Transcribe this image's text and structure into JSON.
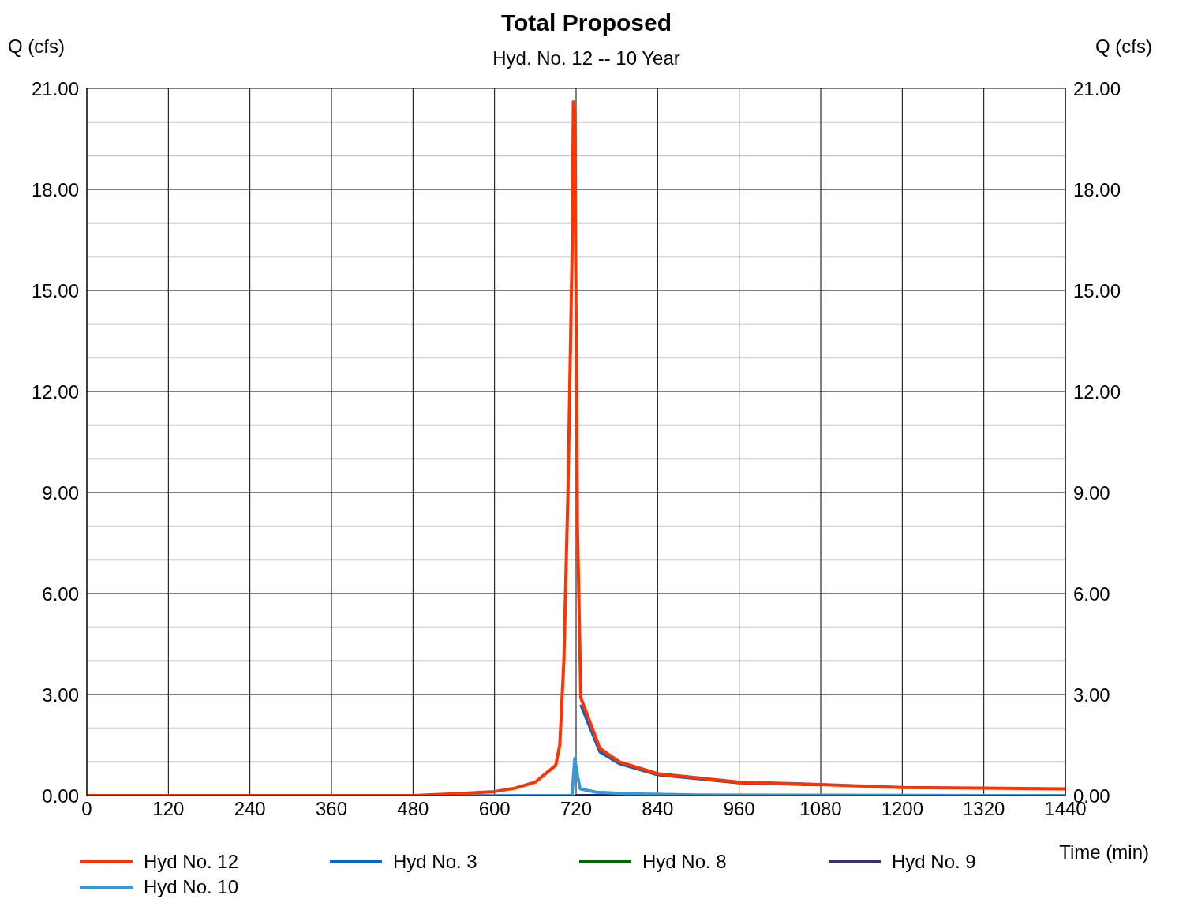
{
  "chart_data": {
    "type": "line",
    "title": "Total Proposed",
    "subtitle": "Hyd. No. 12 -- 10 Year",
    "xlabel": "Time (min)",
    "ylabel": "Q (cfs)",
    "y2label": "Q (cfs)",
    "xlim": [
      0,
      1440
    ],
    "xticks": [
      0,
      120,
      240,
      360,
      480,
      600,
      720,
      840,
      960,
      1080,
      1200,
      1320,
      1440
    ],
    "ylim": [
      0,
      21
    ],
    "yticks": [
      {
        "value": 0,
        "label": "0.00"
      },
      {
        "value": 1,
        "label": null
      },
      {
        "value": 2,
        "label": null
      },
      {
        "value": 3,
        "label": "3.00"
      },
      {
        "value": 4,
        "label": null
      },
      {
        "value": 5,
        "label": null
      },
      {
        "value": 6,
        "label": "6.00"
      },
      {
        "value": 7,
        "label": null
      },
      {
        "value": 8,
        "label": null
      },
      {
        "value": 9,
        "label": "9.00"
      },
      {
        "value": 10,
        "label": null
      },
      {
        "value": 11,
        "label": null
      },
      {
        "value": 12,
        "label": "12.00"
      },
      {
        "value": 13,
        "label": null
      },
      {
        "value": 14,
        "label": null
      },
      {
        "value": 15,
        "label": "15.00"
      },
      {
        "value": 16,
        "label": null
      },
      {
        "value": 17,
        "label": null
      },
      {
        "value": 18,
        "label": "18.00"
      },
      {
        "value": 19,
        "label": null
      },
      {
        "value": 20,
        "label": null
      },
      {
        "value": 21,
        "label": "21.00"
      }
    ],
    "y2lim": [
      0,
      21
    ],
    "y2ticks": [
      {
        "value": 0,
        "label": "0.00"
      },
      {
        "value": 3,
        "label": "3.00"
      },
      {
        "value": 6,
        "label": "6.00"
      },
      {
        "value": 9,
        "label": "9.00"
      },
      {
        "value": 12,
        "label": "12.00"
      },
      {
        "value": 15,
        "label": "15.00"
      },
      {
        "value": 18,
        "label": "18.00"
      },
      {
        "value": 21,
        "label": "21.00"
      }
    ],
    "grid": true,
    "legend": "bottom",
    "marker": "none",
    "line_style": "solid",
    "series": [
      {
        "name": "Hyd No. 12",
        "color": "#ff3300",
        "x": [
          0,
          480,
          540,
          600,
          630,
          660,
          690,
          696,
          702,
          708,
          714,
          716,
          718,
          722,
          727,
          755,
          784,
          840,
          960,
          1080,
          1200,
          1440
        ],
        "values": [
          0,
          0,
          0.05,
          0.12,
          0.22,
          0.4,
          0.9,
          1.5,
          4.0,
          9.0,
          16.0,
          20.6,
          20.2,
          8.0,
          2.9,
          1.4,
          1.0,
          0.65,
          0.4,
          0.33,
          0.24,
          0.2
        ]
      },
      {
        "name": "Hyd No. 3",
        "color": "#0066cc",
        "x": [
          727,
          755,
          784,
          840,
          960,
          1080
        ],
        "values": [
          2.7,
          1.3,
          0.95,
          0.62,
          0.38,
          0.32
        ]
      },
      {
        "name": "Hyd No. 8",
        "color": "#006600"
      },
      {
        "name": "Hyd No. 9",
        "color": "#333366",
        "x": [
          718,
          790
        ],
        "values": [
          0,
          0
        ]
      },
      {
        "name": "Hyd No. 10",
        "color": "#3399dd",
        "x": [
          0,
          714,
          718,
          722,
          726,
          750,
          800,
          900,
          1100,
          1440
        ],
        "values": [
          0,
          0,
          1.1,
          0.6,
          0.2,
          0.1,
          0.05,
          0.02,
          0.01,
          0
        ]
      }
    ]
  }
}
